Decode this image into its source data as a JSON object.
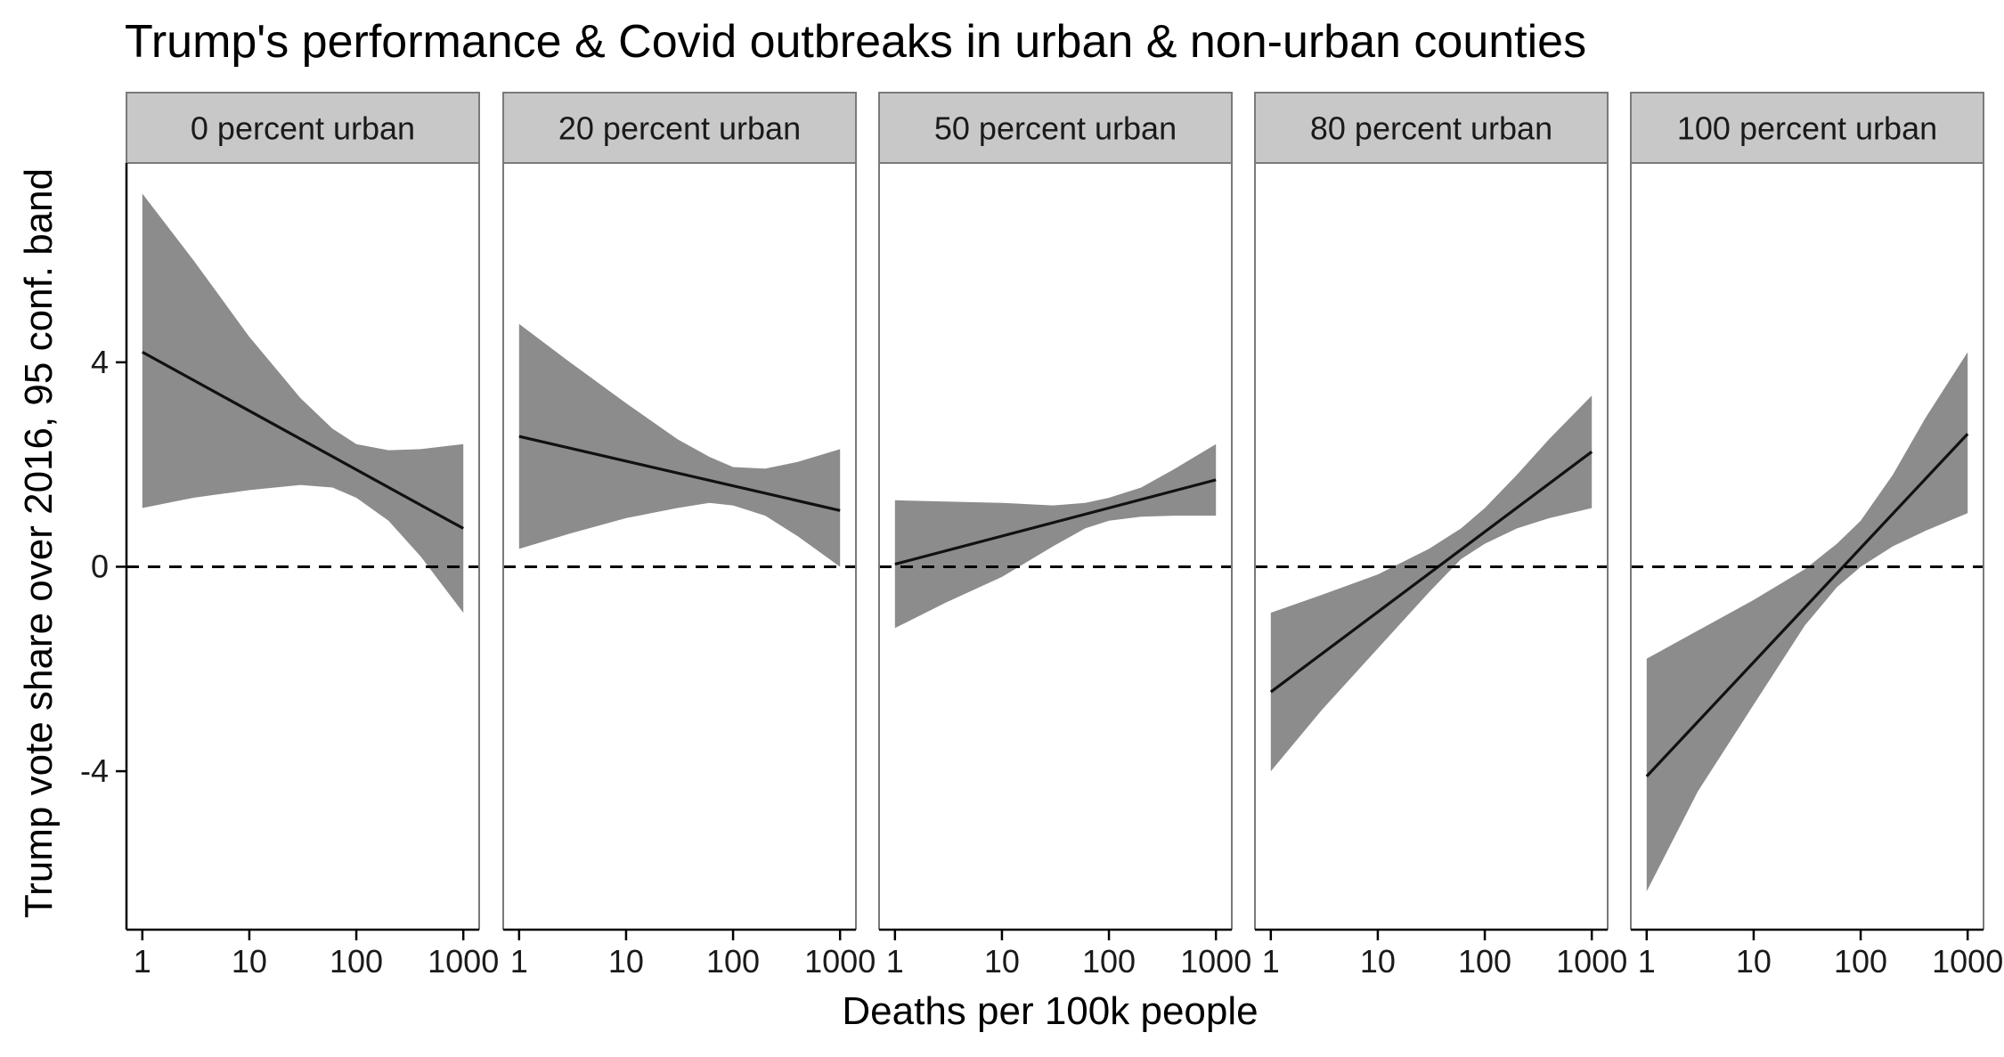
{
  "chart_data": {
    "type": "line",
    "title": "Trump's performance & Covid outbreaks in urban & non-urban counties",
    "xlabel": "Deaths per 100k people",
    "ylabel": "Trump vote share over 2016, 95 conf. band",
    "x_scale": "log10",
    "xlim": [
      1,
      1000
    ],
    "x_ticks": [
      1,
      10,
      100,
      1000
    ],
    "x_tick_labels": [
      "1",
      "10",
      "100",
      "1000"
    ],
    "ylim": [
      -7.1,
      7.9
    ],
    "y_ticks": [
      -4,
      0,
      4
    ],
    "y_tick_labels": [
      "-4",
      "0",
      "4"
    ],
    "reference_line": {
      "y": 0,
      "style": "dashed"
    },
    "panels": [
      {
        "label": "0 percent urban",
        "fit": {
          "x": [
            1,
            1000
          ],
          "y": [
            4.2,
            0.75
          ]
        },
        "band_upper": [
          [
            1,
            7.3
          ],
          [
            3,
            6.0
          ],
          [
            10,
            4.5
          ],
          [
            30,
            3.3
          ],
          [
            60,
            2.7
          ],
          [
            100,
            2.4
          ],
          [
            200,
            2.28
          ],
          [
            400,
            2.3
          ],
          [
            1000,
            2.4
          ]
        ],
        "band_lower": [
          [
            1,
            1.15
          ],
          [
            3,
            1.35
          ],
          [
            10,
            1.5
          ],
          [
            30,
            1.6
          ],
          [
            60,
            1.55
          ],
          [
            100,
            1.35
          ],
          [
            200,
            0.9
          ],
          [
            400,
            0.2
          ],
          [
            1000,
            -0.9
          ]
        ]
      },
      {
        "label": "20 percent urban",
        "fit": {
          "x": [
            1,
            1000
          ],
          "y": [
            2.55,
            1.1
          ]
        },
        "band_upper": [
          [
            1,
            4.75
          ],
          [
            3,
            4.0
          ],
          [
            10,
            3.2
          ],
          [
            30,
            2.5
          ],
          [
            60,
            2.15
          ],
          [
            100,
            1.95
          ],
          [
            200,
            1.92
          ],
          [
            400,
            2.05
          ],
          [
            1000,
            2.3
          ]
        ],
        "band_lower": [
          [
            1,
            0.35
          ],
          [
            3,
            0.65
          ],
          [
            10,
            0.95
          ],
          [
            30,
            1.15
          ],
          [
            60,
            1.25
          ],
          [
            100,
            1.2
          ],
          [
            200,
            1.0
          ],
          [
            400,
            0.6
          ],
          [
            1000,
            0.0
          ]
        ]
      },
      {
        "label": "50 percent urban",
        "fit": {
          "x": [
            1,
            1000
          ],
          "y": [
            0.05,
            1.7
          ]
        },
        "band_upper": [
          [
            1,
            1.3
          ],
          [
            10,
            1.25
          ],
          [
            30,
            1.2
          ],
          [
            60,
            1.25
          ],
          [
            100,
            1.35
          ],
          [
            200,
            1.55
          ],
          [
            400,
            1.9
          ],
          [
            1000,
            2.4
          ]
        ],
        "band_lower": [
          [
            1,
            -1.2
          ],
          [
            3,
            -0.7
          ],
          [
            10,
            -0.2
          ],
          [
            30,
            0.4
          ],
          [
            60,
            0.75
          ],
          [
            100,
            0.9
          ],
          [
            200,
            0.98
          ],
          [
            400,
            1.0
          ],
          [
            1000,
            1.0
          ]
        ]
      },
      {
        "label": "80 percent urban",
        "fit": {
          "x": [
            1,
            1000
          ],
          "y": [
            -2.45,
            2.25
          ]
        },
        "band_upper": [
          [
            1,
            -0.9
          ],
          [
            3,
            -0.55
          ],
          [
            10,
            -0.15
          ],
          [
            30,
            0.35
          ],
          [
            60,
            0.75
          ],
          [
            100,
            1.15
          ],
          [
            200,
            1.8
          ],
          [
            400,
            2.5
          ],
          [
            1000,
            3.35
          ]
        ],
        "band_lower": [
          [
            1,
            -4.0
          ],
          [
            3,
            -2.8
          ],
          [
            10,
            -1.6
          ],
          [
            30,
            -0.5
          ],
          [
            60,
            0.15
          ],
          [
            100,
            0.45
          ],
          [
            200,
            0.75
          ],
          [
            400,
            0.95
          ],
          [
            1000,
            1.15
          ]
        ]
      },
      {
        "label": "100 percent urban",
        "fit": {
          "x": [
            1,
            1000
          ],
          "y": [
            -4.1,
            2.6
          ]
        },
        "band_upper": [
          [
            1,
            -1.8
          ],
          [
            3,
            -1.25
          ],
          [
            10,
            -0.65
          ],
          [
            30,
            -0.05
          ],
          [
            60,
            0.45
          ],
          [
            100,
            0.9
          ],
          [
            200,
            1.8
          ],
          [
            400,
            2.9
          ],
          [
            1000,
            4.2
          ]
        ],
        "band_lower": [
          [
            1,
            -6.35
          ],
          [
            3,
            -4.4
          ],
          [
            10,
            -2.7
          ],
          [
            30,
            -1.15
          ],
          [
            60,
            -0.4
          ],
          [
            100,
            0.0
          ],
          [
            200,
            0.4
          ],
          [
            400,
            0.7
          ],
          [
            1000,
            1.05
          ]
        ]
      }
    ]
  }
}
